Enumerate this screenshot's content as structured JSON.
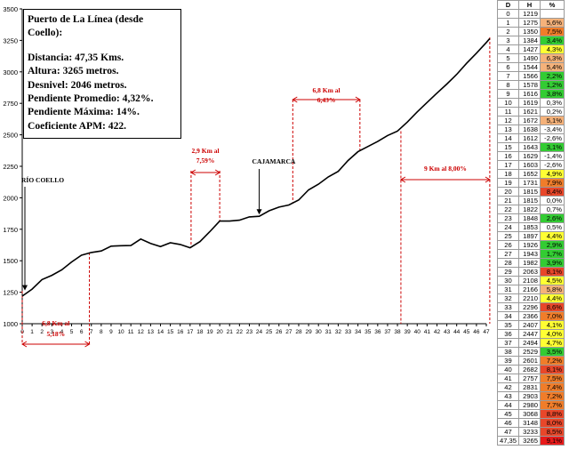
{
  "info": {
    "title": "Puerto de La Línea (desde Coello):",
    "distance": "Distancia: 47,35 Kms.",
    "altitude": "Altura: 3265 metros.",
    "desnivel": "Desnivel: 2046 metros.",
    "avg_slope": "Pendiente Promedio: 4,32%.",
    "max_slope": "Pendiente Máxima: 14%.",
    "apm": "Coeficiente APM: 422."
  },
  "table": {
    "headers": [
      "D",
      "H",
      "%"
    ],
    "rows": [
      {
        "d": "0",
        "h": "1219",
        "p": "",
        "c": "#ffffff"
      },
      {
        "d": "1",
        "h": "1275",
        "p": "5,6%",
        "c": "#f5b27a"
      },
      {
        "d": "2",
        "h": "1350",
        "p": "7,5%",
        "c": "#f07d2a"
      },
      {
        "d": "3",
        "h": "1384",
        "p": "3,4%",
        "c": "#33cc33"
      },
      {
        "d": "4",
        "h": "1427",
        "p": "4,3%",
        "c": "#ffff33"
      },
      {
        "d": "5",
        "h": "1490",
        "p": "6,3%",
        "c": "#f5b27a"
      },
      {
        "d": "6",
        "h": "1544",
        "p": "5,4%",
        "c": "#f5b27a"
      },
      {
        "d": "7",
        "h": "1566",
        "p": "2,2%",
        "c": "#33cc33"
      },
      {
        "d": "8",
        "h": "1578",
        "p": "1,2%",
        "c": "#33cc33"
      },
      {
        "d": "9",
        "h": "1616",
        "p": "3,8%",
        "c": "#33cc33"
      },
      {
        "d": "10",
        "h": "1619",
        "p": "0,3%",
        "c": "#ffffff"
      },
      {
        "d": "11",
        "h": "1621",
        "p": "0,2%",
        "c": "#ffffff"
      },
      {
        "d": "12",
        "h": "1672",
        "p": "5,1%",
        "c": "#f5b27a"
      },
      {
        "d": "13",
        "h": "1638",
        "p": "-3,4%",
        "c": "#ffffff"
      },
      {
        "d": "14",
        "h": "1612",
        "p": "-2,6%",
        "c": "#ffffff"
      },
      {
        "d": "15",
        "h": "1643",
        "p": "3,1%",
        "c": "#33cc33"
      },
      {
        "d": "16",
        "h": "1629",
        "p": "-1,4%",
        "c": "#ffffff"
      },
      {
        "d": "17",
        "h": "1603",
        "p": "-2,6%",
        "c": "#ffffff"
      },
      {
        "d": "18",
        "h": "1652",
        "p": "4,9%",
        "c": "#ffff33"
      },
      {
        "d": "19",
        "h": "1731",
        "p": "7,9%",
        "c": "#f07d2a"
      },
      {
        "d": "20",
        "h": "1815",
        "p": "8,4%",
        "c": "#e8472a"
      },
      {
        "d": "21",
        "h": "1815",
        "p": "0,0%",
        "c": "#ffffff"
      },
      {
        "d": "22",
        "h": "1822",
        "p": "0,7%",
        "c": "#ffffff"
      },
      {
        "d": "23",
        "h": "1848",
        "p": "2,6%",
        "c": "#33cc33"
      },
      {
        "d": "24",
        "h": "1853",
        "p": "0,5%",
        "c": "#ffffff"
      },
      {
        "d": "25",
        "h": "1897",
        "p": "4,4%",
        "c": "#ffff33"
      },
      {
        "d": "26",
        "h": "1926",
        "p": "2,9%",
        "c": "#33cc33"
      },
      {
        "d": "27",
        "h": "1943",
        "p": "1,7%",
        "c": "#33cc33"
      },
      {
        "d": "28",
        "h": "1982",
        "p": "3,9%",
        "c": "#33cc33"
      },
      {
        "d": "29",
        "h": "2063",
        "p": "8,1%",
        "c": "#e8472a"
      },
      {
        "d": "30",
        "h": "2108",
        "p": "4,5%",
        "c": "#ffff33"
      },
      {
        "d": "31",
        "h": "2166",
        "p": "5,8%",
        "c": "#f5b27a"
      },
      {
        "d": "32",
        "h": "2210",
        "p": "4,4%",
        "c": "#ffff33"
      },
      {
        "d": "33",
        "h": "2296",
        "p": "8,6%",
        "c": "#e8472a"
      },
      {
        "d": "34",
        "h": "2366",
        "p": "7,0%",
        "c": "#f07d2a"
      },
      {
        "d": "35",
        "h": "2407",
        "p": "4,1%",
        "c": "#ffff33"
      },
      {
        "d": "36",
        "h": "2447",
        "p": "4,0%",
        "c": "#ffff33"
      },
      {
        "d": "37",
        "h": "2494",
        "p": "4,7%",
        "c": "#ffff33"
      },
      {
        "d": "38",
        "h": "2529",
        "p": "3,5%",
        "c": "#33cc33"
      },
      {
        "d": "39",
        "h": "2601",
        "p": "7,2%",
        "c": "#f07d2a"
      },
      {
        "d": "40",
        "h": "2682",
        "p": "8,1%",
        "c": "#e8472a"
      },
      {
        "d": "41",
        "h": "2757",
        "p": "7,5%",
        "c": "#f07d2a"
      },
      {
        "d": "42",
        "h": "2831",
        "p": "7,4%",
        "c": "#f07d2a"
      },
      {
        "d": "43",
        "h": "2903",
        "p": "7,2%",
        "c": "#f07d2a"
      },
      {
        "d": "44",
        "h": "2980",
        "p": "7,7%",
        "c": "#f07d2a"
      },
      {
        "d": "45",
        "h": "3068",
        "p": "8,8%",
        "c": "#e8472a"
      },
      {
        "d": "46",
        "h": "3148",
        "p": "8,0%",
        "c": "#e8472a"
      },
      {
        "d": "47",
        "h": "3233",
        "p": "8,5%",
        "c": "#e8472a"
      },
      {
        "d": "47,35",
        "h": "3265",
        "p": "9,1%",
        "c": "#e81a1a"
      }
    ]
  },
  "chart_data": {
    "type": "line",
    "title": "",
    "xlabel": "",
    "ylabel": "",
    "xlim": [
      0,
      47
    ],
    "ylim": [
      1000,
      3500
    ],
    "yticks": [
      1000,
      1250,
      1500,
      1750,
      2000,
      2250,
      2500,
      2750,
      3000,
      3250,
      3500
    ],
    "xticks": [
      0,
      1,
      2,
      3,
      4,
      5,
      6,
      7,
      8,
      9,
      10,
      11,
      12,
      13,
      14,
      15,
      16,
      17,
      18,
      19,
      20,
      21,
      22,
      23,
      24,
      25,
      26,
      27,
      28,
      29,
      30,
      31,
      32,
      33,
      34,
      35,
      36,
      37,
      38,
      39,
      40,
      41,
      42,
      43,
      44,
      45,
      46,
      47
    ],
    "grid": false,
    "series": [
      {
        "x": [
          0,
          1,
          2,
          3,
          4,
          5,
          6,
          7,
          8,
          9,
          10,
          11,
          12,
          13,
          14,
          15,
          16,
          17,
          18,
          19,
          20,
          21,
          22,
          23,
          24,
          25,
          26,
          27,
          28,
          29,
          30,
          31,
          32,
          33,
          34,
          35,
          36,
          37,
          38,
          39,
          40,
          41,
          42,
          43,
          44,
          45,
          46,
          47,
          47.35
        ],
        "y": [
          1219,
          1275,
          1350,
          1384,
          1427,
          1490,
          1544,
          1566,
          1578,
          1616,
          1619,
          1621,
          1672,
          1638,
          1612,
          1643,
          1629,
          1603,
          1652,
          1731,
          1815,
          1815,
          1822,
          1848,
          1853,
          1897,
          1926,
          1943,
          1982,
          2063,
          2108,
          2166,
          2210,
          2296,
          2366,
          2407,
          2447,
          2494,
          2529,
          2601,
          2682,
          2757,
          2831,
          2903,
          2980,
          3068,
          3148,
          3233,
          3265
        ]
      }
    ],
    "annotations": [
      {
        "text": "RÍO COELLO",
        "x": 0,
        "y": 1250
      },
      {
        "text": "CAJAMARCA",
        "x": 24,
        "y": 1853
      }
    ],
    "segments": [
      {
        "x0": 0,
        "x1": 6.8,
        "label": "6,8 Km al 5,18%",
        "below": true
      },
      {
        "x0": 17.1,
        "x1": 20,
        "label": "2,9 Km al 7,59%",
        "below": false
      },
      {
        "x0": 27.4,
        "x1": 34.2,
        "label": "6,8 Km al 6,43%",
        "below": false
      },
      {
        "x0": 38.35,
        "x1": 47.35,
        "label": "9 Km al 8,00%",
        "below": true
      }
    ]
  }
}
